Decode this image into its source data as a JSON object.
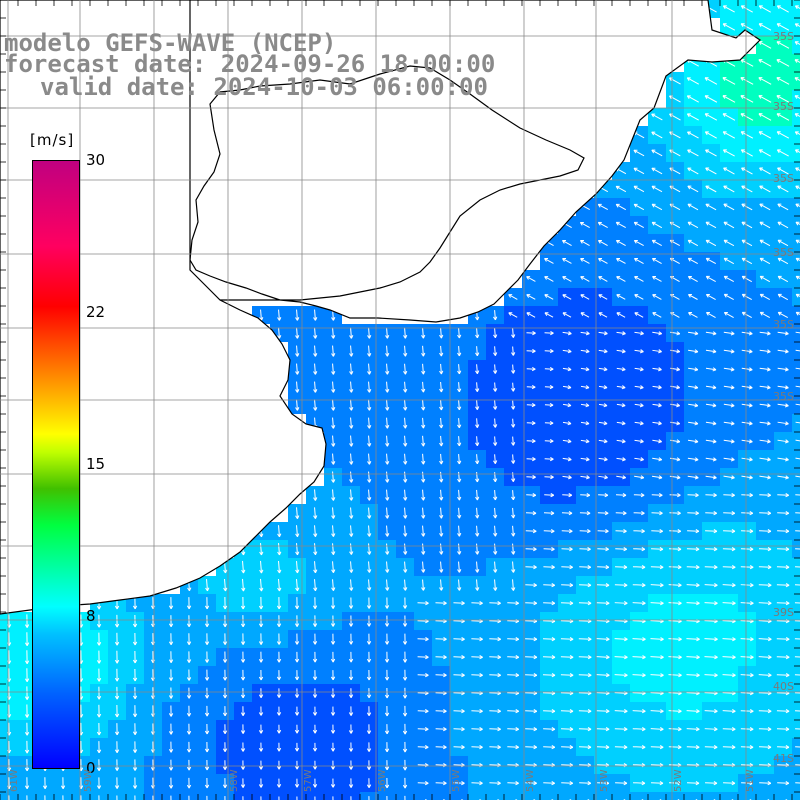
{
  "title": {
    "model": "modelo GEFS-WAVE (NCEP)",
    "forecast": "forecast date: 2024-09-26 18:00:00",
    "valid": "valid date: 2024-10-03 06:00:00"
  },
  "colorbar": {
    "unit": "[m/s]",
    "ticks": [
      {
        "label": "30",
        "value": 30
      },
      {
        "label": "22",
        "value": 22
      },
      {
        "label": "15",
        "value": 15
      },
      {
        "label": "8",
        "value": 8
      },
      {
        "label": "0",
        "value": 0
      }
    ],
    "min": 0,
    "max": 30
  },
  "lat_labels": [
    "35S",
    "35S",
    "35S",
    "35S",
    "35S",
    "35S",
    "39S",
    "40S",
    "41S"
  ],
  "lon_labels": [
    "61W",
    "59W",
    "58W",
    "57W",
    "56W",
    "55W",
    "54W",
    "53W",
    "52W",
    "51W"
  ],
  "colors": {
    "land": "#ffffff",
    "coast": "#000000",
    "grid": "#888888",
    "arrow": "#ffffff",
    "title": "#8a8a8a",
    "strong": "#00e0ff",
    "weak": "#0040ff",
    "medium": "#00a0ff"
  },
  "wind_field": {
    "description_keys": [
      "speed_m_s"
    ],
    "south_wind_speed_m_s": 8,
    "north_wind_speed_m_s": 5,
    "arrow_direction": "onshore north-west on the northern coast, south on the western coast, east in the south"
  }
}
